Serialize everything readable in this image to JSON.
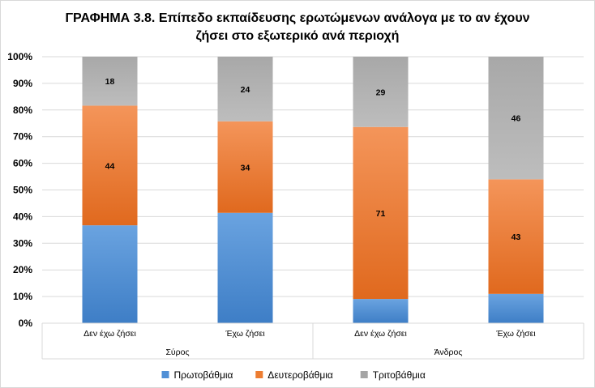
{
  "chart_data": {
    "type": "bar",
    "stacked": "percent",
    "title_line_1": "ΓΡΑΦΗΜΑ 3.8. Επίπεδο εκπαίδευσης ερωτώμενων ανάλογα με το αν έχουν",
    "title_line_2": "ζήσει στο εξωτερικό ανά περιοχή",
    "groups": [
      "Σύρος",
      "Άνδρος"
    ],
    "categories": [
      "Δεν έχω ζήσει",
      "Έχω ζήσει",
      "Δεν έχω ζήσει",
      "Έχω ζήσει"
    ],
    "category_group": [
      0,
      0,
      1,
      1
    ],
    "series": [
      {
        "name": "Πρωτοβάθμια",
        "color": "#4f8fd6",
        "values": [
          36,
          41,
          10,
          11
        ],
        "labels": [
          "",
          "",
          "",
          ""
        ]
      },
      {
        "name": "Δευτεροβάθμια",
        "color": "#ed7d31",
        "values": [
          44,
          34,
          71,
          43
        ],
        "labels": [
          "44",
          "34",
          "71",
          "43"
        ]
      },
      {
        "name": "Τριτοβάθμια",
        "color": "#a5a5a5",
        "values": [
          18,
          24,
          29,
          46
        ],
        "labels": [
          "18",
          "24",
          "29",
          "46"
        ]
      }
    ],
    "y_ticks": [
      "0%",
      "10%",
      "20%",
      "30%",
      "40%",
      "50%",
      "60%",
      "70%",
      "80%",
      "90%",
      "100%"
    ],
    "ylim": [
      0,
      100
    ],
    "grid": true,
    "legend_position": "bottom"
  }
}
